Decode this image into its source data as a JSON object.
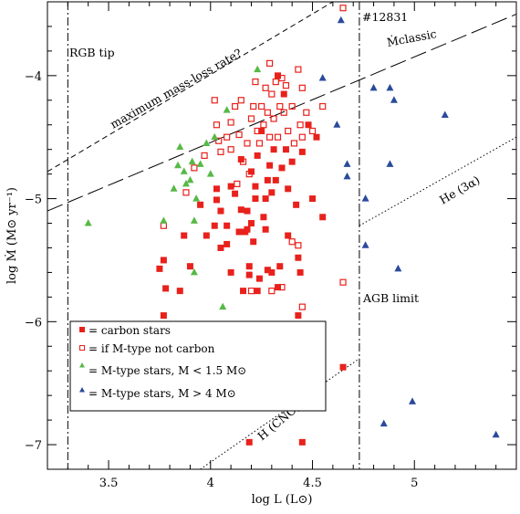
{
  "chart_data": {
    "type": "scatter",
    "xlabel": "log L (L⊙)",
    "ylabel": "log Ṁ (M⊙ yr⁻¹)",
    "xlim": [
      3.2,
      5.5
    ],
    "ylim": [
      -7.2,
      -3.4
    ],
    "x_ticks": [
      3.5,
      4,
      4.5,
      5
    ],
    "x_tick_labels": [
      "3.5",
      "4",
      "4.5",
      "5"
    ],
    "y_ticks": [
      -7,
      -6,
      -5,
      -4
    ],
    "y_tick_labels": [
      "−7",
      "−6",
      "−5",
      "−4"
    ],
    "grid": false,
    "legend_position": "lower-left",
    "colors": {
      "carbon": "#e8211c",
      "mtype_low": "#57b947",
      "mtype_high": "#2b4a9b"
    },
    "legend": [
      {
        "marker": "filled-square",
        "color": "#e8211c",
        "label": "= carbon stars"
      },
      {
        "marker": "open-square",
        "color": "#e8211c",
        "label": "= if M-type not carbon"
      },
      {
        "marker": "triangle",
        "color": "#57b947",
        "label": "= M-type stars, M < 1.5 M⊙"
      },
      {
        "marker": "triangle",
        "color": "#2b4a9b",
        "label": "= M-type stars, M > 4 M⊙"
      }
    ],
    "reference_lines": [
      {
        "label": "RGB tip",
        "style": "dash-dot",
        "x": 3.3
      },
      {
        "label": "AGB limit",
        "style": "dash-dot",
        "x": 4.73
      },
      {
        "label": "maximum mass-loss rate?",
        "style": "short-dash",
        "points": [
          [
            3.2,
            -4.78
          ],
          [
            4.6,
            -3.4
          ]
        ]
      },
      {
        "label": "Ṁ classic",
        "style": "long-dash",
        "points": [
          [
            3.2,
            -5.1
          ],
          [
            5.5,
            -3.5
          ]
        ]
      },
      {
        "label": "He (3α)",
        "style": "dotted",
        "points": [
          [
            4.73,
            -5.22
          ],
          [
            5.5,
            -4.5
          ]
        ]
      },
      {
        "label": "H (CNO)",
        "style": "dotted",
        "points": [
          [
            3.95,
            -7.2
          ],
          [
            4.73,
            -6.3
          ]
        ]
      }
    ],
    "annotations": [
      {
        "text": "RGB tip"
      },
      {
        "text": "AGB limit"
      },
      {
        "text": "maximum mass-loss rate?"
      },
      {
        "text": "Ṁclassic"
      },
      {
        "text": "He (3α)"
      },
      {
        "text": "H (CNO)"
      },
      {
        "text": "#12831"
      }
    ],
    "series": [
      {
        "name": "carbon stars",
        "marker": "filled-square",
        "color": "#e8211c",
        "points": [
          [
            3.75,
            -5.57
          ],
          [
            3.77,
            -5.5
          ],
          [
            3.78,
            -5.73
          ],
          [
            3.85,
            -5.75
          ],
          [
            3.87,
            -5.3
          ],
          [
            3.9,
            -5.55
          ],
          [
            3.95,
            -5.05
          ],
          [
            3.98,
            -5.3
          ],
          [
            4.02,
            -5.22
          ],
          [
            4.03,
            -4.92
          ],
          [
            4.03,
            -5.01
          ],
          [
            4.05,
            -5.1
          ],
          [
            4.05,
            -5.4
          ],
          [
            4.08,
            -5.37
          ],
          [
            4.08,
            -5.22
          ],
          [
            4.1,
            -4.9
          ],
          [
            4.1,
            -5.6
          ],
          [
            4.12,
            -4.96
          ],
          [
            4.14,
            -5.27
          ],
          [
            4.15,
            -5.09
          ],
          [
            4.16,
            -5.75
          ],
          [
            4.17,
            -5.27
          ],
          [
            4.18,
            -5.1
          ],
          [
            4.18,
            -5.25
          ],
          [
            4.19,
            -5.55
          ],
          [
            4.19,
            -5.62
          ],
          [
            4.2,
            -5.2
          ],
          [
            4.21,
            -5.35
          ],
          [
            4.22,
            -4.9
          ],
          [
            4.22,
            -5.0
          ],
          [
            4.23,
            -4.65
          ],
          [
            4.23,
            -5.75
          ],
          [
            4.24,
            -5.65
          ],
          [
            4.25,
            -4.45
          ],
          [
            4.26,
            -5.15
          ],
          [
            4.27,
            -5.0
          ],
          [
            4.27,
            -5.25
          ],
          [
            4.28,
            -4.85
          ],
          [
            4.28,
            -5.58
          ],
          [
            4.29,
            -4.73
          ],
          [
            4.3,
            -4.95
          ],
          [
            4.3,
            -5.6
          ],
          [
            4.31,
            -4.6
          ],
          [
            4.32,
            -4.85
          ],
          [
            4.33,
            -4.0
          ],
          [
            4.33,
            -5.72
          ],
          [
            4.34,
            -5.55
          ],
          [
            4.35,
            -4.75
          ],
          [
            4.36,
            -4.15
          ],
          [
            4.37,
            -4.6
          ],
          [
            4.38,
            -4.92
          ],
          [
            4.38,
            -5.3
          ],
          [
            4.4,
            -4.7
          ],
          [
            4.42,
            -5.05
          ],
          [
            4.43,
            -5.48
          ],
          [
            4.44,
            -5.6
          ],
          [
            4.45,
            -4.62
          ],
          [
            4.48,
            -4.4
          ],
          [
            4.5,
            -5.0
          ],
          [
            4.52,
            -4.5
          ],
          [
            4.55,
            -5.15
          ],
          [
            4.43,
            -5.95
          ],
          [
            4.45,
            -6.45
          ],
          [
            4.48,
            -6.65
          ],
          [
            4.45,
            -6.98
          ],
          [
            4.19,
            -6.98
          ],
          [
            4.65,
            -6.37
          ],
          [
            3.77,
            -5.95
          ],
          [
            4.15,
            -4.68
          ],
          [
            4.2,
            -4.78
          ]
        ]
      },
      {
        "name": "if M-type not carbon",
        "marker": "open-square",
        "color": "#e8211c",
        "points": [
          [
            4.65,
            -3.45
          ],
          [
            3.77,
            -5.22
          ],
          [
            3.88,
            -4.95
          ],
          [
            3.92,
            -4.75
          ],
          [
            3.97,
            -4.65
          ],
          [
            4.02,
            -4.2
          ],
          [
            4.03,
            -4.4
          ],
          [
            4.04,
            -4.53
          ],
          [
            4.05,
            -4.62
          ],
          [
            4.08,
            -4.5
          ],
          [
            4.1,
            -4.38
          ],
          [
            4.1,
            -4.6
          ],
          [
            4.12,
            -4.25
          ],
          [
            4.13,
            -4.88
          ],
          [
            4.14,
            -4.48
          ],
          [
            4.15,
            -4.2
          ],
          [
            4.16,
            -4.7
          ],
          [
            4.18,
            -4.55
          ],
          [
            4.19,
            -4.8
          ],
          [
            4.2,
            -4.35
          ],
          [
            4.21,
            -4.25
          ],
          [
            4.22,
            -4.05
          ],
          [
            4.23,
            -4.45
          ],
          [
            4.24,
            -4.55
          ],
          [
            4.25,
            -4.25
          ],
          [
            4.26,
            -4.4
          ],
          [
            4.27,
            -4.1
          ],
          [
            4.28,
            -4.3
          ],
          [
            4.29,
            -3.9
          ],
          [
            4.29,
            -4.5
          ],
          [
            4.3,
            -4.15
          ],
          [
            4.31,
            -4.35
          ],
          [
            4.32,
            -4.05
          ],
          [
            4.33,
            -4.5
          ],
          [
            4.34,
            -4.25
          ],
          [
            4.35,
            -4.02
          ],
          [
            4.36,
            -4.3
          ],
          [
            4.37,
            -4.08
          ],
          [
            4.38,
            -4.45
          ],
          [
            4.4,
            -4.25
          ],
          [
            4.41,
            -4.55
          ],
          [
            4.43,
            -3.95
          ],
          [
            4.44,
            -4.4
          ],
          [
            4.45,
            -4.1
          ],
          [
            4.45,
            -4.5
          ],
          [
            4.47,
            -4.3
          ],
          [
            4.5,
            -4.45
          ],
          [
            4.55,
            -4.25
          ],
          [
            4.2,
            -5.75
          ],
          [
            4.3,
            -5.75
          ],
          [
            4.35,
            -5.72
          ],
          [
            4.45,
            -5.88
          ],
          [
            4.48,
            -6.1
          ],
          [
            4.42,
            -6.42
          ],
          [
            4.65,
            -5.68
          ],
          [
            4.4,
            -5.35
          ],
          [
            4.43,
            -5.38
          ]
        ]
      },
      {
        "name": "M-type stars, M < 1.5 M⊙",
        "marker": "triangle",
        "color": "#57b947",
        "points": [
          [
            3.4,
            -5.2
          ],
          [
            3.77,
            -5.18
          ],
          [
            3.82,
            -4.92
          ],
          [
            3.84,
            -4.73
          ],
          [
            3.85,
            -4.58
          ],
          [
            3.87,
            -4.78
          ],
          [
            3.88,
            -4.88
          ],
          [
            3.9,
            -4.85
          ],
          [
            3.91,
            -4.7
          ],
          [
            3.92,
            -5.18
          ],
          [
            3.93,
            -5.0
          ],
          [
            3.95,
            -4.72
          ],
          [
            3.98,
            -4.55
          ],
          [
            4.0,
            -4.8
          ],
          [
            4.02,
            -4.5
          ],
          [
            4.08,
            -4.28
          ],
          [
            4.23,
            -3.95
          ],
          [
            3.92,
            -5.6
          ],
          [
            4.06,
            -5.88
          ]
        ]
      },
      {
        "name": "M-type stars, M > 4 M⊙",
        "marker": "triangle",
        "color": "#2b4a9b",
        "points": [
          [
            4.64,
            -3.55
          ],
          [
            4.55,
            -4.02
          ],
          [
            4.62,
            -4.4
          ],
          [
            4.67,
            -4.72
          ],
          [
            4.67,
            -4.82
          ],
          [
            4.76,
            -5.0
          ],
          [
            4.76,
            -5.38
          ],
          [
            4.8,
            -4.1
          ],
          [
            4.88,
            -4.1
          ],
          [
            4.9,
            -4.2
          ],
          [
            4.88,
            -4.72
          ],
          [
            5.15,
            -4.32
          ],
          [
            4.92,
            -5.57
          ],
          [
            4.99,
            -6.65
          ],
          [
            4.85,
            -6.83
          ],
          [
            5.4,
            -6.92
          ]
        ]
      }
    ]
  }
}
